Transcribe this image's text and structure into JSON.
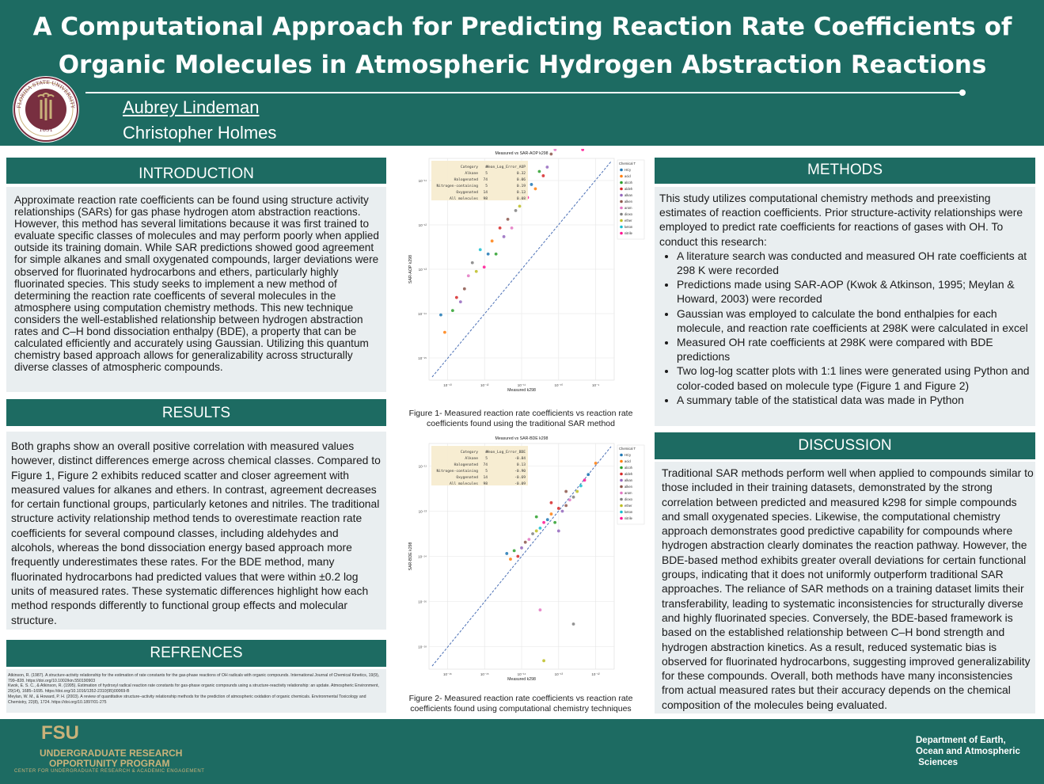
{
  "header": {
    "title": "A Computational Approach for Predicting  Reaction Rate Coefficients of Organic Molecules in Atmospheric Hydrogen Abstraction Reactions",
    "author_1": "Aubrey Lindeman",
    "author_2": "Christopher Holmes",
    "seal": {
      "text_top": "FLORIDA STATE UNIVERSITY",
      "year": "1851"
    }
  },
  "introduction": {
    "heading": "INTRODUCTION",
    "text": "Approximate reaction rate coefficients can be found using structure activity relationships (SARs) for gas phase hydrogen atom abstraction reactions. However, this method has several limitations because it was first trained to evaluate specific classes of molecules and may perform poorly when applied outside its training domain. While SAR predictions showed good agreement for simple alkanes and small oxygenated compounds, larger deviations were observed for fluorinated hydrocarbons and ethers, particularly highly fluorinated species. This study seeks to implement a new method of determining the reaction rate coefficents of several molecules in the atmosphere using computation chemistry methods. This new technique considers the well-established relationship between hydrogen abstraction rates and C–H bond dissociation enthalpy (BDE), a property that can be calculated efficiently and accurately using Gaussian. Utilizing this quantum chemistry based approach allows for generalizability across structurally diverse classes of atmospheric compounds."
  },
  "results": {
    "heading": "RESULTS",
    "text": "Both graphs show an overall positive correlation with measured values however, distinct differences emerge across chemical classes. Compared to Figure 1, Figure 2 exhibits reduced scatter and closer agreement with measured values for alkanes and ethers. In contrast, agreement decreases for certain functional groups, particularly ketones and nitriles. The traditional structure activity relationship method tends to overestimate reaction rate coefficients for several compound classes, including aldehydes and alcohols, whereas the bond dissociation energy based approach more frequently underestimates these rates. For the BDE method, many fluorinated hydrocarbons had predicted values that were within ±0.2 log units of measured rates. These systematic differences highlight how each method responds differently to functional group effects and molecular structure."
  },
  "references": {
    "heading": "REFRENCES",
    "items": [
      "Atkinson, R. (1987). A structure-activity relationship for the estimation of rate constants for the gas-phase reactions of OH radicals with organic compounds. International Journal of Chemical Kinetics, 19(9), 799–828. https://doi.org/10.1002/kin.550190903",
      "Kwok, E. S. C., & Atkinson, R. (1995). Estimation of hydroxyl radical reaction rate constants for gas-phase organic compounds using a structure-reactivity relationship: an update. Atmospheric Environment, 29(14), 1685–1695. https://doi.org/10.1016/1352-2310(95)00069-B",
      "Meylan, W. M., & Howard, P. H. (2003). A review of quantitative structure–activity relationship methods for the prediction of atmospheric oxidation of organic chemicals. Environmental Toxicology and Chemistry, 22(8), 1724. https://doi.org/10.1897/01-275"
    ]
  },
  "methods": {
    "heading": "METHODS",
    "intro": "This study utilizes computational chemistry methods and preexisting estimates of reaction coefficients. Prior structure-activity relationships were employed to predict rate coefficients for reactions of gases with OH. To conduct this research:",
    "bullets": [
      "A literature search was conducted and measured OH rate coefficients at 298 K were recorded",
      "Predictions made using SAR-AOP (Kwok & Atkinson, 1995; Meylan & Howard, 2003) were recorded",
      "Gaussian was employed to calculate the bond enthalpies for each molecule, and reaction rate coefficients at 298K were calculated in excel",
      "Measured OH rate coefficients at 298K were compared with BDE predictions",
      " Two log-log scatter plots with 1:1 lines were generated using Python and color-coded based on molecule type (Figure 1 and Figure 2)",
      "A summary table of the statistical data was made in Python"
    ]
  },
  "discussion": {
    "heading": "DISCUSSION",
    "text": "Traditional SAR methods perform well when applied to compounds similar to those included in their training datasets, demonstrated by the strong correlation between predicted and measured k298 for simple compounds and small oxygenated species. Likewise, the computational chemistry approach demonstrates good predictive capability for compounds where hydrogen abstraction clearly dominates the reaction pathway. However, the BDE-based method exhibits greater overall deviations for certain functional groups, indicating that it does not uniformly outperform traditional SAR approaches. The reliance of SAR methods on a training dataset limits their transferability, leading to systematic inconsistencies for structurally diverse and highly fluorinated species. Conversely, the BDE-based framework is based on the established relationship between C–H bond strength and hydrogen abstraction kinetics. As a result, reduced systematic bias is observed for fluorinated hydrocarbons, suggesting improved generalizability for these compounds. Overall, both methods have many inconsistencies from actual measured rates but their accuracy depends on the chemical composition of the molecules being evaluated."
  },
  "figures": {
    "fig1_caption": "Figure 1- Measured reaction rate coefficients vs  reaction rate coefficients found using the traditional SAR method",
    "fig2_caption": "Figure 2- Measured reaction rate coefficients vs  reaction rate coefficients found using computational chemistry techniques"
  },
  "footer": {
    "logo": "FSU",
    "program_line1": "UNDERGRADUATE RESEARCH",
    "program_line2": "OPPORTUNITY PROGRAM",
    "program_line3": "CENTER FOR UNDERGRADUATE RESEARCH & ACADEMIC ENGAGEMENT",
    "dept_line1": "Department of Earth,",
    "dept_line2": "Ocean and Atmospheric",
    "dept_line3": " Sciences"
  },
  "colors": {
    "header_bg": "#1d6b62",
    "panel_bg": "#e9eef0",
    "gold": "#c9b27a",
    "garnet": "#782f40"
  },
  "chart_data": [
    {
      "type": "scatter",
      "title": "Measured vs SAR-AOP k298",
      "xlabel": "Measured k298",
      "ylabel": "SAR-AOP k298",
      "log_scale": true,
      "grid": true,
      "diagonal_line": "1:1 dashed",
      "legend_title": "Chemical T",
      "legend_position": "right",
      "legend": [
        "HCy",
        "acid",
        "alcoh",
        "aldeh",
        "alkan",
        "alken",
        "arom",
        "dioxo",
        "ether",
        "keton",
        "nitrile"
      ],
      "series_colors": [
        "#1f77b4",
        "#ff7f0e",
        "#2ca02c",
        "#d62728",
        "#9467bd",
        "#8c564b",
        "#e377c2",
        "#7f7f7f",
        "#bcbd22",
        "#17becf",
        "#ff1493"
      ],
      "x_ticks": [
        "10⁻¹³",
        "10⁻¹²",
        "10⁻¹¹",
        "10⁻¹⁰",
        "10⁻⁹"
      ],
      "y_ticks": [
        "10⁻¹¹",
        "10⁻¹²",
        "10⁻¹³",
        "10⁻¹⁴",
        "10⁻¹⁵"
      ],
      "xlim_log10": [
        -13.5,
        -8.8
      ],
      "ylim_log10": [
        -15.8,
        -10.7
      ],
      "summary_table": {
        "columns": [
          "Category",
          "n",
          "Mean_Log_Error_AOP"
        ],
        "rows": [
          [
            "Alkane",
            "5",
            "0.32"
          ],
          [
            "Halogenated",
            "74",
            "0.06"
          ],
          [
            "Nitrogen-containing",
            "5",
            "0.19"
          ],
          [
            "Oxygenated",
            "14",
            "0.13"
          ],
          [
            "All molecules",
            "98",
            "0.08"
          ]
        ]
      },
      "points_log10": [
        [
          -13.2,
          -14.3
        ],
        [
          -13.1,
          -14.7
        ],
        [
          -12.9,
          -14.2
        ],
        [
          -12.8,
          -13.9
        ],
        [
          -12.7,
          -14.0
        ],
        [
          -12.6,
          -13.7
        ],
        [
          -12.5,
          -13.4
        ],
        [
          -12.4,
          -13.1
        ],
        [
          -12.3,
          -13.3
        ],
        [
          -12.2,
          -12.8
        ],
        [
          -12.1,
          -13.2
        ],
        [
          -12.0,
          -12.9
        ],
        [
          -11.9,
          -12.6
        ],
        [
          -11.8,
          -12.9
        ],
        [
          -11.7,
          -12.3
        ],
        [
          -11.6,
          -12.5
        ],
        [
          -11.5,
          -12.1
        ],
        [
          -11.4,
          -12.3
        ],
        [
          -11.3,
          -11.9
        ],
        [
          -11.2,
          -11.8
        ],
        [
          -11.1,
          -11.5
        ],
        [
          -11.0,
          -11.6
        ],
        [
          -10.9,
          -11.3
        ],
        [
          -10.8,
          -11.4
        ],
        [
          -10.7,
          -11.0
        ],
        [
          -10.6,
          -11.1
        ],
        [
          -10.5,
          -10.9
        ],
        [
          -10.4,
          -10.6
        ],
        [
          -10.3,
          -10.5
        ],
        [
          -10.2,
          -10.3
        ],
        [
          -10.0,
          -10.1
        ],
        [
          -9.8,
          -10.0
        ],
        [
          -9.6,
          -10.5
        ],
        [
          -9.5,
          -9.9
        ],
        [
          -9.3,
          -10.2
        ],
        [
          -9.0,
          -9.6
        ]
      ]
    },
    {
      "type": "scatter",
      "title": "Measured vs SAR-BDE k298",
      "xlabel": "Measured k298",
      "ylabel": "SAR-BDE k298",
      "log_scale": true,
      "grid": true,
      "diagonal_line": "1:1 dashed",
      "legend_title": "Chemical T",
      "legend_position": "right",
      "legend": [
        "HCy",
        "acid",
        "alcoh",
        "aldeh",
        "alkan",
        "alken",
        "arom",
        "dioxo",
        "ether",
        "keton",
        "nitrile"
      ],
      "series_colors": [
        "#1f77b4",
        "#ff7f0e",
        "#2ca02c",
        "#d62728",
        "#9467bd",
        "#8c564b",
        "#e377c2",
        "#7f7f7f",
        "#bcbd22",
        "#17becf",
        "#ff1493"
      ],
      "x_ticks": [
        "10⁻¹⁶",
        "10⁻¹⁵",
        "10⁻¹⁴",
        "10⁻¹³",
        "10⁻¹²"
      ],
      "y_ticks": [
        "10⁻¹¹",
        "10⁻¹³",
        "10⁻¹⁴",
        "10⁻¹⁶",
        "10⁻¹⁸"
      ],
      "xlim_log10": [
        -16.5,
        -11.5
      ],
      "ylim_log10": [
        -18.5,
        -10.5
      ],
      "summary_table": {
        "columns": [
          "Category",
          "n",
          "Mean_Log_Error_BDE"
        ],
        "rows": [
          [
            "Alkane",
            "5",
            "-0.84"
          ],
          [
            "Halogenated",
            "74",
            "0.13"
          ],
          [
            "Nitrogen-containing",
            "5",
            "-0.90"
          ],
          [
            "Oxygenated",
            "14",
            "-0.69"
          ],
          [
            "All molecules",
            "98",
            "-0.09"
          ]
        ]
      },
      "points_log10": [
        [
          -14.4,
          -14.4
        ],
        [
          -14.3,
          -14.6
        ],
        [
          -14.2,
          -14.3
        ],
        [
          -14.1,
          -14.5
        ],
        [
          -14.0,
          -14.2
        ],
        [
          -13.9,
          -14.0
        ],
        [
          -13.8,
          -13.9
        ],
        [
          -13.7,
          -13.7
        ],
        [
          -13.6,
          -13.6
        ],
        [
          -13.5,
          -13.5
        ],
        [
          -13.4,
          -13.3
        ],
        [
          -13.3,
          -13.2
        ],
        [
          -13.2,
          -13.0
        ],
        [
          -13.1,
          -13.3
        ],
        [
          -13.0,
          -12.8
        ],
        [
          -12.9,
          -12.9
        ],
        [
          -12.8,
          -12.7
        ],
        [
          -12.7,
          -12.5
        ],
        [
          -12.6,
          -12.4
        ],
        [
          -12.5,
          -12.2
        ],
        [
          -12.4,
          -12.0
        ],
        [
          -12.3,
          -11.8
        ],
        [
          -12.2,
          -11.6
        ],
        [
          -12.0,
          -11.2
        ],
        [
          -13.6,
          -13.1
        ],
        [
          -13.2,
          -12.6
        ],
        [
          -13.0,
          -13.6
        ],
        [
          -12.8,
          -12.2
        ],
        [
          -13.5,
          -16.4
        ],
        [
          -12.6,
          -16.9
        ],
        [
          -13.4,
          -18.2
        ]
      ]
    }
  ]
}
